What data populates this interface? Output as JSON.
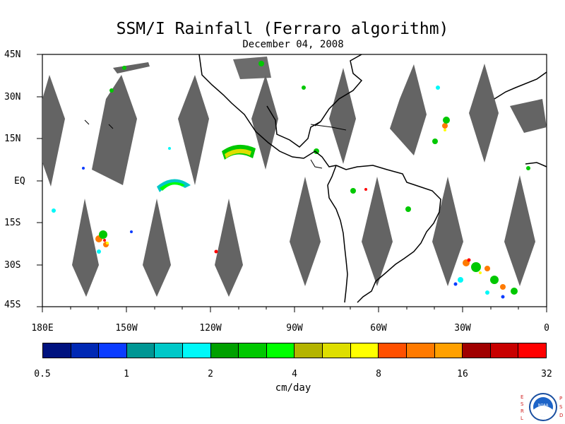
{
  "title": "SSM/I Rainfall (Ferraro algorithm)",
  "subtitle": "December 04, 2008",
  "lat_labels": [
    "45N",
    "30N",
    "15N",
    "EQ",
    "15S",
    "30S",
    "45S"
  ],
  "lon_labels": [
    "180E",
    "150W",
    "120W",
    "90W",
    "60W",
    "30W",
    "0"
  ],
  "colorbar": {
    "tick_labels": [
      "0.5",
      "1",
      "2",
      "4",
      "8",
      "16",
      "32"
    ],
    "units": "cm/day",
    "colors": [
      "#00127f",
      "#0028b4",
      "#0b3cff",
      "#009694",
      "#00c8c8",
      "#00f8f8",
      "#00a000",
      "#00c800",
      "#00ff00",
      "#b4b400",
      "#dede00",
      "#ffff00",
      "#ff5000",
      "#ff7a00",
      "#ffa000",
      "#a00000",
      "#c80000",
      "#ff0000"
    ]
  },
  "map": {
    "missing_data_color": "#646464",
    "land_outline_color": "#000000"
  },
  "logo": {
    "left_letters": "ESRL",
    "right_letters": "PSD",
    "emblem": "NOAA"
  }
}
